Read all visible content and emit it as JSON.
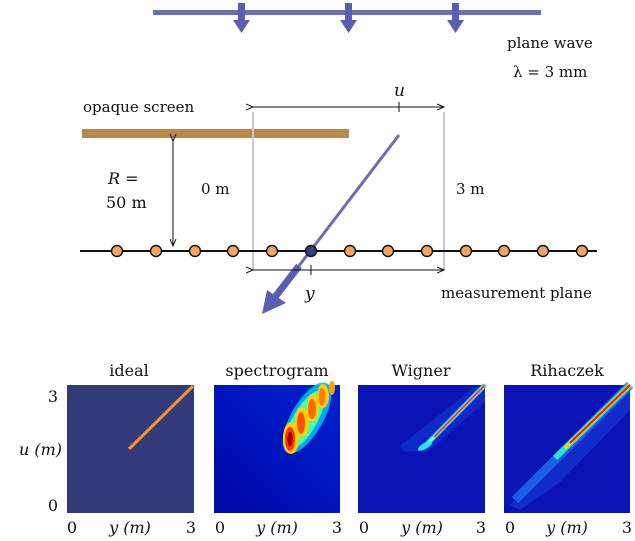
{
  "labels": {
    "plane_wave": "plane wave",
    "wavelength": "λ = 3 mm",
    "u": "u",
    "opaque_screen": "opaque screen",
    "distance_line1": "R =",
    "distance_line2": "50 m",
    "zero_m": "0 m",
    "three_m": "3 m",
    "y": "y",
    "measurement_plane": "measurement plane"
  },
  "panels": [
    {
      "title": "ideal"
    },
    {
      "title": "spectrogram"
    },
    {
      "title": "Wigner"
    },
    {
      "title": "Rihaczek"
    }
  ],
  "axes": {
    "y_top": "3",
    "y_bottom": "0",
    "y_label": "u (m)",
    "x_left": "0",
    "x_label": "y (m)",
    "x_right": "3"
  },
  "colors": {
    "wave": "#6b6db8",
    "screen": "#b8884d",
    "sensor": "#f4a460",
    "dark_bg": "#323c7a",
    "jet_bg": "#0a14b4"
  }
}
